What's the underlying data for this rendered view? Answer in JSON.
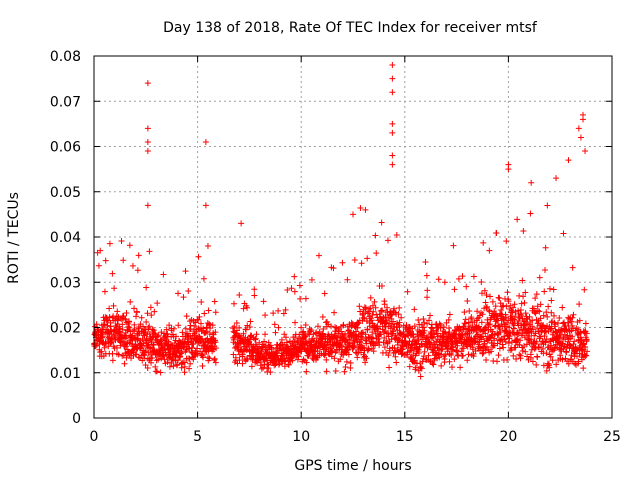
{
  "chart_data": {
    "type": "scatter",
    "title": "Day 138 of 2018, Rate Of TEC Index for receiver mtsf",
    "xlabel": "GPS time / hours",
    "ylabel": "ROTI / TECUs",
    "xlim": [
      0,
      25
    ],
    "ylim": [
      0,
      0.08
    ],
    "x_ticks": [
      0,
      5,
      10,
      15,
      20,
      25
    ],
    "x_tick_labels": [
      "0",
      "5",
      "10",
      "15",
      "20",
      "25"
    ],
    "y_ticks": [
      0,
      0.01,
      0.02,
      0.03,
      0.04,
      0.05,
      0.06,
      0.07,
      0.08
    ],
    "y_tick_labels": [
      "0",
      "0.01",
      "0.02",
      "0.03",
      "0.04",
      "0.05",
      "0.06",
      "0.07",
      "0.08"
    ],
    "grid": true,
    "marker": "+",
    "color": "#ff0000",
    "series": [
      {
        "name": "ROTI",
        "outliers": [
          {
            "x": 2.6,
            "y": 0.074
          },
          {
            "x": 2.6,
            "y": 0.064
          },
          {
            "x": 2.6,
            "y": 0.061
          },
          {
            "x": 2.6,
            "y": 0.059
          },
          {
            "x": 2.6,
            "y": 0.047
          },
          {
            "x": 5.4,
            "y": 0.061
          },
          {
            "x": 5.4,
            "y": 0.047
          },
          {
            "x": 14.4,
            "y": 0.078
          },
          {
            "x": 14.4,
            "y": 0.075
          },
          {
            "x": 14.4,
            "y": 0.072
          },
          {
            "x": 14.4,
            "y": 0.065
          },
          {
            "x": 14.4,
            "y": 0.063
          },
          {
            "x": 14.4,
            "y": 0.058
          },
          {
            "x": 14.4,
            "y": 0.056
          },
          {
            "x": 23.6,
            "y": 0.067
          },
          {
            "x": 23.6,
            "y": 0.066
          },
          {
            "x": 23.4,
            "y": 0.064
          },
          {
            "x": 23.5,
            "y": 0.062
          },
          {
            "x": 23.7,
            "y": 0.059
          },
          {
            "x": 20.0,
            "y": 0.056
          },
          {
            "x": 20.0,
            "y": 0.055
          },
          {
            "x": 22.9,
            "y": 0.057
          },
          {
            "x": 21.1,
            "y": 0.052
          },
          {
            "x": 22.3,
            "y": 0.053
          },
          {
            "x": 13.1,
            "y": 0.046
          },
          {
            "x": 12.5,
            "y": 0.045
          },
          {
            "x": 7.1,
            "y": 0.043
          },
          {
            "x": 0.3,
            "y": 0.037
          },
          {
            "x": 5.5,
            "y": 0.038
          }
        ],
        "envelope": [
          {
            "x": 0.0,
            "mean": 0.018,
            "spread": 0.006
          },
          {
            "x": 1.0,
            "mean": 0.019,
            "spread": 0.008
          },
          {
            "x": 2.0,
            "mean": 0.017,
            "spread": 0.007
          },
          {
            "x": 3.0,
            "mean": 0.016,
            "spread": 0.006
          },
          {
            "x": 4.0,
            "mean": 0.015,
            "spread": 0.005
          },
          {
            "x": 5.0,
            "mean": 0.018,
            "spread": 0.007
          },
          {
            "x": 5.8,
            "mean": 0.016,
            "spread": 0.006
          },
          {
            "x": 6.8,
            "mean": 0.017,
            "spread": 0.006
          },
          {
            "x": 8.0,
            "mean": 0.014,
            "spread": 0.004
          },
          {
            "x": 9.0,
            "mean": 0.014,
            "spread": 0.004
          },
          {
            "x": 10.0,
            "mean": 0.016,
            "spread": 0.005
          },
          {
            "x": 11.0,
            "mean": 0.017,
            "spread": 0.006
          },
          {
            "x": 12.0,
            "mean": 0.016,
            "spread": 0.006
          },
          {
            "x": 13.0,
            "mean": 0.019,
            "spread": 0.008
          },
          {
            "x": 14.0,
            "mean": 0.02,
            "spread": 0.009
          },
          {
            "x": 15.0,
            "mean": 0.017,
            "spread": 0.007
          },
          {
            "x": 16.0,
            "mean": 0.016,
            "spread": 0.007
          },
          {
            "x": 17.0,
            "mean": 0.017,
            "spread": 0.007
          },
          {
            "x": 18.0,
            "mean": 0.018,
            "spread": 0.007
          },
          {
            "x": 19.0,
            "mean": 0.019,
            "spread": 0.008
          },
          {
            "x": 20.0,
            "mean": 0.02,
            "spread": 0.009
          },
          {
            "x": 21.0,
            "mean": 0.019,
            "spread": 0.009
          },
          {
            "x": 22.0,
            "mean": 0.018,
            "spread": 0.008
          },
          {
            "x": 23.0,
            "mean": 0.017,
            "spread": 0.008
          },
          {
            "x": 23.8,
            "mean": 0.016,
            "spread": 0.006
          }
        ],
        "gaps": [
          [
            5.9,
            6.7
          ]
        ],
        "x_range": [
          0.0,
          23.8
        ]
      }
    ]
  }
}
